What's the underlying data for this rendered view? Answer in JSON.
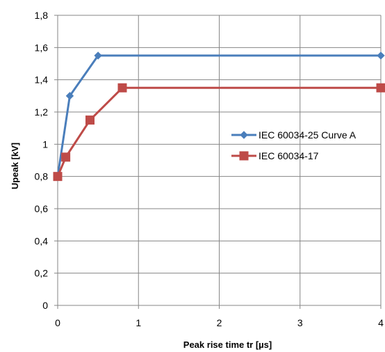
{
  "chart_data": {
    "type": "line",
    "xlabel": "Peak rise time tr [µs]",
    "ylabel": "Upeak [kV]",
    "x_ticks": [
      {
        "value": 0,
        "label": "0"
      },
      {
        "value": 1,
        "label": "1"
      },
      {
        "value": 2,
        "label": "2"
      },
      {
        "value": 3,
        "label": "3"
      },
      {
        "value": 4,
        "label": "4"
      }
    ],
    "y_ticks": [
      {
        "value": 0,
        "label": "0"
      },
      {
        "value": 0.2,
        "label": "0,2"
      },
      {
        "value": 0.4,
        "label": "0,4"
      },
      {
        "value": 0.6,
        "label": "0,6"
      },
      {
        "value": 0.8,
        "label": "0,8"
      },
      {
        "value": 1.0,
        "label": "1"
      },
      {
        "value": 1.2,
        "label": "1,2"
      },
      {
        "value": 1.4,
        "label": "1,4"
      },
      {
        "value": 1.6,
        "label": "1,6"
      },
      {
        "value": 1.8,
        "label": "1,8"
      }
    ],
    "xlim": [
      0,
      4
    ],
    "ylim": [
      0,
      1.8
    ],
    "grid": true,
    "legend_position": "right",
    "series": [
      {
        "name": "IEC 60034-25 Curve A",
        "color": "#4a7ebb",
        "marker": "diamond",
        "points": [
          {
            "x": 0,
            "y": 0.8
          },
          {
            "x": 0.15,
            "y": 1.3
          },
          {
            "x": 0.5,
            "y": 1.55
          },
          {
            "x": 4,
            "y": 1.55
          }
        ]
      },
      {
        "name": "IEC 60034-17",
        "color": "#be4b48",
        "marker": "square",
        "points": [
          {
            "x": 0,
            "y": 0.8
          },
          {
            "x": 0.1,
            "y": 0.92
          },
          {
            "x": 0.4,
            "y": 1.15
          },
          {
            "x": 0.8,
            "y": 1.35
          },
          {
            "x": 4,
            "y": 1.35
          }
        ]
      }
    ]
  }
}
